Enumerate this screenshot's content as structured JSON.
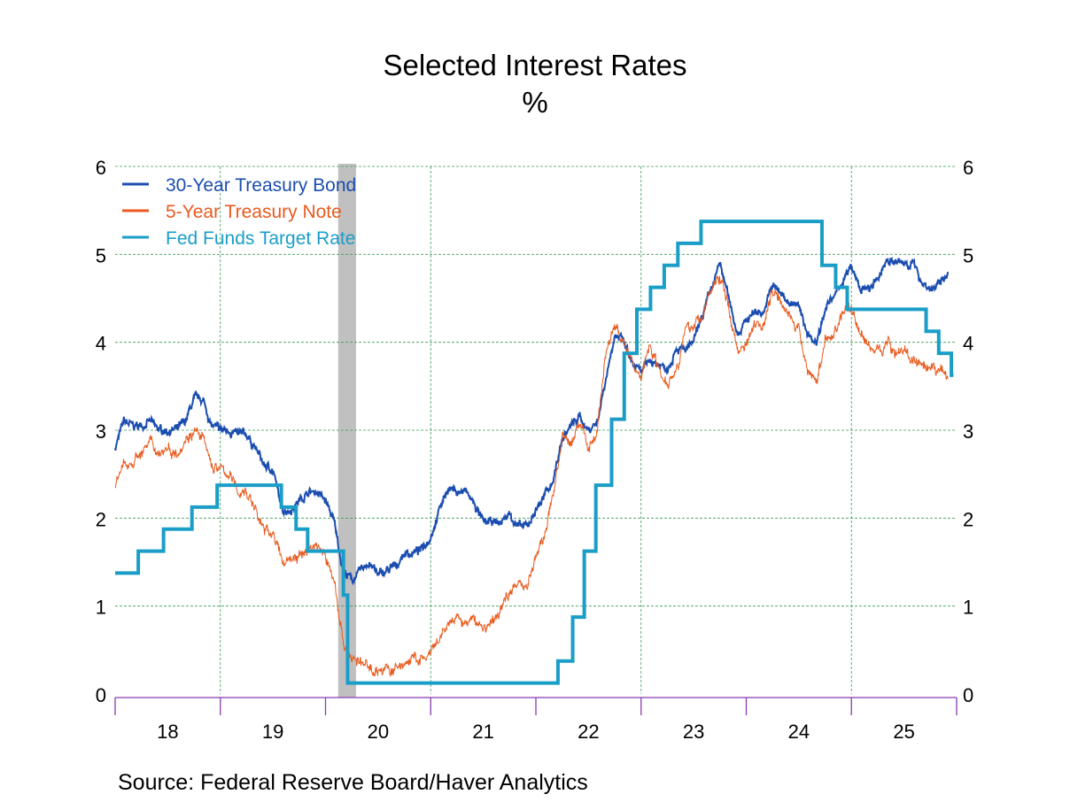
{
  "chart_data": {
    "type": "line",
    "title": "Selected Interest Rates",
    "subtitle": "%",
    "source": "Source:  Federal Reserve Board/Haver Analytics",
    "ylim": [
      0,
      6
    ],
    "yticks": [
      "0",
      "1",
      "2",
      "3",
      "4",
      "5",
      "6"
    ],
    "xlim": [
      2018.0,
      2026.0
    ],
    "xticks": [
      "18",
      "19",
      "20",
      "21",
      "22",
      "23",
      "24",
      "25"
    ],
    "grid": true,
    "legend_position": "top-left",
    "recession": [
      2020.12,
      2020.29
    ],
    "colors": {
      "bond30": "#1b4db0",
      "note5": "#e85a1e",
      "fedfunds": "#1a9ec8",
      "recession": "#c0c0c0",
      "grid": "#3a9a5a",
      "axis": "#8a3ab0"
    },
    "series": [
      {
        "name": "30-Year Treasury Bond",
        "key": "bond30",
        "frequency": "monthly",
        "start": 2018.0,
        "values": [
          2.8,
          3.1,
          3.05,
          3.05,
          3.1,
          3.0,
          3.0,
          3.0,
          3.1,
          3.35,
          3.35,
          3.05,
          3.0,
          3.0,
          2.95,
          2.95,
          2.8,
          2.6,
          2.55,
          2.1,
          2.1,
          2.2,
          2.3,
          2.3,
          2.2,
          1.95,
          1.4,
          1.3,
          1.4,
          1.5,
          1.35,
          1.4,
          1.45,
          1.6,
          1.6,
          1.65,
          1.8,
          2.1,
          2.35,
          2.3,
          2.3,
          2.15,
          1.95,
          1.95,
          1.95,
          2.05,
          1.9,
          1.9,
          2.1,
          2.25,
          2.45,
          2.9,
          3.05,
          3.15,
          3.0,
          3.1,
          3.6,
          4.1,
          4.0,
          3.75,
          3.65,
          3.8,
          3.75,
          3.7,
          3.95,
          3.9,
          4.0,
          4.3,
          4.6,
          4.9,
          4.5,
          4.1,
          4.25,
          4.35,
          4.35,
          4.65,
          4.55,
          4.45,
          4.4,
          4.1,
          4.0,
          4.4,
          4.5,
          4.7,
          4.85,
          4.6,
          4.6,
          4.7,
          4.95,
          4.9,
          4.9,
          4.9,
          4.7,
          4.6,
          4.65,
          4.8
        ]
      },
      {
        "name": "5-Year Treasury Note",
        "key": "note5",
        "frequency": "monthly",
        "start": 2018.0,
        "values": [
          2.35,
          2.6,
          2.65,
          2.75,
          2.85,
          2.75,
          2.8,
          2.75,
          2.9,
          3.0,
          2.9,
          2.6,
          2.55,
          2.5,
          2.3,
          2.3,
          2.1,
          1.85,
          1.85,
          1.5,
          1.55,
          1.55,
          1.65,
          1.7,
          1.55,
          1.3,
          0.6,
          0.4,
          0.35,
          0.3,
          0.27,
          0.28,
          0.27,
          0.35,
          0.4,
          0.38,
          0.45,
          0.6,
          0.8,
          0.85,
          0.8,
          0.85,
          0.75,
          0.8,
          0.95,
          1.2,
          1.25,
          1.25,
          1.55,
          1.8,
          2.3,
          2.9,
          2.85,
          3.1,
          2.8,
          3.0,
          3.9,
          4.2,
          4.0,
          3.75,
          3.6,
          4.0,
          3.7,
          3.55,
          3.7,
          4.1,
          4.2,
          4.3,
          4.6,
          4.75,
          4.4,
          3.9,
          4.0,
          4.25,
          4.2,
          4.6,
          4.5,
          4.3,
          4.1,
          3.7,
          3.55,
          4.0,
          4.1,
          4.35,
          4.4,
          4.1,
          3.95,
          3.9,
          4.0,
          3.9,
          3.9,
          3.8,
          3.7,
          3.65,
          3.7,
          3.6
        ]
      },
      {
        "name": "Fed Funds Target Rate",
        "key": "fedfunds",
        "type": "step",
        "steps": [
          [
            2018.0,
            1.375
          ],
          [
            2018.22,
            1.625
          ],
          [
            2018.46,
            1.875
          ],
          [
            2018.73,
            2.125
          ],
          [
            2018.97,
            2.375
          ],
          [
            2019.58,
            2.125
          ],
          [
            2019.72,
            1.875
          ],
          [
            2019.83,
            1.625
          ],
          [
            2020.17,
            1.125
          ],
          [
            2020.21,
            0.125
          ],
          [
            2022.21,
            0.375
          ],
          [
            2022.35,
            0.875
          ],
          [
            2022.46,
            1.625
          ],
          [
            2022.57,
            2.375
          ],
          [
            2022.72,
            3.125
          ],
          [
            2022.84,
            3.875
          ],
          [
            2022.96,
            4.375
          ],
          [
            2023.09,
            4.625
          ],
          [
            2023.22,
            4.875
          ],
          [
            2023.35,
            5.125
          ],
          [
            2023.57,
            5.375
          ],
          [
            2024.72,
            4.875
          ],
          [
            2024.85,
            4.625
          ],
          [
            2024.96,
            4.375
          ],
          [
            2025.71,
            4.125
          ],
          [
            2025.83,
            3.875
          ],
          [
            2025.95,
            3.625
          ]
        ],
        "end": 2025.97
      }
    ]
  }
}
